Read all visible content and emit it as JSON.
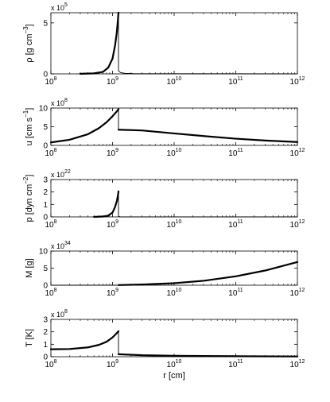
{
  "chart_data": [
    {
      "type": "line",
      "ylabel": "ρ [g cm",
      "ylabel_sup": "−3",
      "ylabel_close": "]",
      "xscale": "log",
      "xlim": [
        100000000.0,
        1000000000000.0
      ],
      "ylim": [
        0,
        6
      ],
      "yticks": [
        0,
        5
      ],
      "multiplier_base": "x 10",
      "multiplier_exp": "5",
      "xticklabels": [
        {
          "v": 100000000.0,
          "base": "10",
          "exp": "8"
        },
        {
          "v": 1000000000.0,
          "base": "10",
          "exp": "9"
        },
        {
          "v": 10000000000.0,
          "base": "10",
          "exp": "10"
        },
        {
          "v": 100000000000.0,
          "base": "10",
          "exp": "11"
        },
        {
          "v": 1000000000000.0,
          "base": "10",
          "exp": "12"
        }
      ],
      "series": [
        {
          "style": "thick",
          "x": [
            300000000.0,
            500000000.0,
            700000000.0,
            850000000.0,
            1000000000.0,
            1100000000.0,
            1170000000.0,
            1220000000.0,
            1250000000.0
          ],
          "y": [
            0.01,
            0.05,
            0.2,
            0.6,
            1.5,
            2.8,
            4.0,
            5.2,
            6.0
          ]
        },
        {
          "style": "thin",
          "x": [
            1250000000.0,
            1250000000.0,
            1350000000.0,
            1600000000.0,
            2200000000.0,
            1000000000000.0
          ],
          "y": [
            6.0,
            0.3,
            0.12,
            0.05,
            0.02,
            0.0
          ]
        }
      ]
    },
    {
      "type": "line",
      "ylabel": "u [cm s",
      "ylabel_sup": "−1",
      "ylabel_close": "]",
      "xscale": "log",
      "xlim": [
        100000000.0,
        1000000000000.0
      ],
      "ylim": [
        0,
        10
      ],
      "yticks": [
        0,
        5,
        10
      ],
      "multiplier_base": "x 10",
      "multiplier_exp": "8",
      "xticklabels": [
        {
          "v": 100000000.0,
          "base": "10",
          "exp": "8"
        },
        {
          "v": 1000000000.0,
          "base": "10",
          "exp": "9"
        },
        {
          "v": 10000000000.0,
          "base": "10",
          "exp": "10"
        },
        {
          "v": 100000000000.0,
          "base": "10",
          "exp": "11"
        },
        {
          "v": 1000000000000.0,
          "base": "10",
          "exp": "12"
        }
      ],
      "series": [
        {
          "style": "thick",
          "x": [
            100000000.0,
            200000000.0,
            400000000.0,
            600000000.0,
            800000000.0,
            1000000000.0,
            1200000000.0,
            1250000000.0
          ],
          "y": [
            0.8,
            1.5,
            3.0,
            4.6,
            6.2,
            7.8,
            9.3,
            9.7
          ]
        },
        {
          "style": "thin",
          "x": [
            1250000000.0,
            1250000000.0
          ],
          "y": [
            9.7,
            4.2
          ]
        },
        {
          "style": "thick",
          "x": [
            1250000000.0,
            3000000000.0,
            10000000000.0,
            30000000000.0,
            100000000000.0,
            300000000000.0,
            1000000000000.0
          ],
          "y": [
            4.2,
            4.0,
            3.2,
            2.5,
            1.8,
            1.3,
            0.9
          ]
        }
      ]
    },
    {
      "type": "line",
      "ylabel": "p [dyn cm",
      "ylabel_sup": "−2",
      "ylabel_close": "]",
      "xscale": "log",
      "xlim": [
        100000000.0,
        1000000000000.0
      ],
      "ylim": [
        0,
        3
      ],
      "yticks": [
        0,
        1,
        2,
        3
      ],
      "multiplier_base": "x 10",
      "multiplier_exp": "22",
      "xticklabels": [
        {
          "v": 100000000.0,
          "base": "10",
          "exp": "8"
        },
        {
          "v": 1000000000.0,
          "base": "10",
          "exp": "9"
        },
        {
          "v": 10000000000.0,
          "base": "10",
          "exp": "10"
        },
        {
          "v": 100000000000.0,
          "base": "10",
          "exp": "11"
        },
        {
          "v": 1000000000000.0,
          "base": "10",
          "exp": "12"
        }
      ],
      "series": [
        {
          "style": "thick",
          "x": [
            500000000.0,
            700000000.0,
            850000000.0,
            1000000000.0,
            1100000000.0,
            1180000000.0,
            1230000000.0,
            1250000000.0
          ],
          "y": [
            0.0,
            0.03,
            0.1,
            0.35,
            0.8,
            1.3,
            1.8,
            2.05
          ]
        },
        {
          "style": "thin",
          "x": [
            1250000000.0,
            1250000000.0,
            1350000000.0,
            1000000000000.0
          ],
          "y": [
            2.05,
            0.05,
            0.0,
            0.0
          ]
        }
      ]
    },
    {
      "type": "line",
      "ylabel": "M [g]",
      "ylabel_sup": "",
      "ylabel_close": "",
      "xscale": "log",
      "xlim": [
        100000000.0,
        1000000000000.0
      ],
      "ylim": [
        0,
        10
      ],
      "yticks": [
        0,
        5,
        10
      ],
      "multiplier_base": "x 10",
      "multiplier_exp": "34",
      "xticklabels": [
        {
          "v": 100000000.0,
          "base": "10",
          "exp": "8"
        },
        {
          "v": 1000000000.0,
          "base": "10",
          "exp": "9"
        },
        {
          "v": 10000000000.0,
          "base": "10",
          "exp": "10"
        },
        {
          "v": 100000000000.0,
          "base": "10",
          "exp": "11"
        },
        {
          "v": 1000000000000.0,
          "base": "10",
          "exp": "12"
        }
      ],
      "series": [
        {
          "style": "thin",
          "x": [
            100000000.0,
            1250000000.0
          ],
          "y": [
            0.0,
            0.0
          ]
        },
        {
          "style": "thick",
          "x": [
            1250000000.0,
            3000000000.0,
            10000000000.0,
            30000000000.0,
            100000000000.0,
            300000000000.0,
            1000000000000.0
          ],
          "y": [
            0.05,
            0.2,
            0.6,
            1.3,
            2.6,
            4.3,
            6.8
          ]
        }
      ]
    },
    {
      "type": "line",
      "ylabel": "T [K]",
      "ylabel_sup": "",
      "ylabel_close": "",
      "xlabel": "r [cm]",
      "xscale": "log",
      "xlim": [
        100000000.0,
        1000000000000.0
      ],
      "ylim": [
        0,
        3
      ],
      "yticks": [
        0,
        1,
        2,
        3
      ],
      "multiplier_base": "x 10",
      "multiplier_exp": "8",
      "xticklabels": [
        {
          "v": 100000000.0,
          "base": "10",
          "exp": "8"
        },
        {
          "v": 1000000000.0,
          "base": "10",
          "exp": "9"
        },
        {
          "v": 10000000000.0,
          "base": "10",
          "exp": "10"
        },
        {
          "v": 100000000000.0,
          "base": "10",
          "exp": "11"
        },
        {
          "v": 1000000000000.0,
          "base": "10",
          "exp": "12"
        }
      ],
      "series": [
        {
          "style": "thick",
          "x": [
            100000000.0,
            200000000.0,
            400000000.0,
            600000000.0,
            800000000.0,
            1000000000.0,
            1150000000.0,
            1250000000.0
          ],
          "y": [
            0.6,
            0.62,
            0.75,
            0.95,
            1.2,
            1.55,
            1.85,
            2.05
          ]
        },
        {
          "style": "thin",
          "x": [
            1250000000.0,
            1250000000.0
          ],
          "y": [
            2.05,
            0.2
          ]
        },
        {
          "style": "thick",
          "x": [
            1250000000.0,
            3000000000.0,
            10000000000.0,
            100000000000.0,
            1000000000000.0
          ],
          "y": [
            0.2,
            0.12,
            0.07,
            0.04,
            0.02
          ]
        }
      ]
    }
  ]
}
